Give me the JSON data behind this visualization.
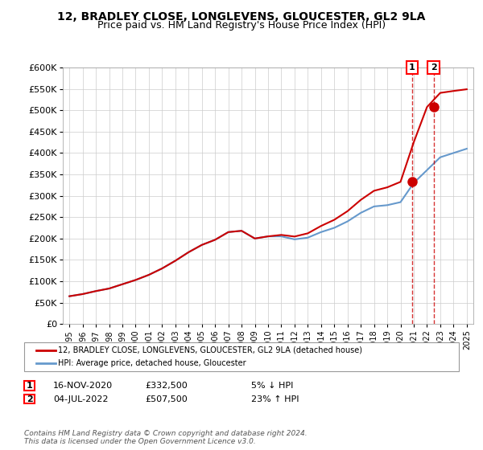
{
  "title": "12, BRADLEY CLOSE, LONGLEVENS, GLOUCESTER, GL2 9LA",
  "subtitle": "Price paid vs. HM Land Registry's House Price Index (HPI)",
  "ylabel_ticks": [
    "£0",
    "£50K",
    "£100K",
    "£150K",
    "£200K",
    "£250K",
    "£300K",
    "£350K",
    "£400K",
    "£450K",
    "£500K",
    "£550K",
    "£600K"
  ],
  "ytick_values": [
    0,
    50000,
    100000,
    150000,
    200000,
    250000,
    300000,
    350000,
    400000,
    450000,
    500000,
    550000,
    600000
  ],
  "years": [
    1995,
    1996,
    1997,
    1998,
    1999,
    2000,
    2001,
    2002,
    2003,
    2004,
    2005,
    2006,
    2007,
    2008,
    2009,
    2010,
    2011,
    2012,
    2013,
    2014,
    2015,
    2016,
    2017,
    2018,
    2019,
    2020,
    2021,
    2022,
    2023,
    2024,
    2025
  ],
  "hpi_values": [
    65000,
    70000,
    77000,
    83000,
    93000,
    103000,
    115000,
    130000,
    148000,
    168000,
    185000,
    197000,
    215000,
    218000,
    200000,
    205000,
    205000,
    198000,
    202000,
    215000,
    225000,
    240000,
    260000,
    275000,
    278000,
    285000,
    330000,
    360000,
    390000,
    400000,
    410000
  ],
  "price_paid_dates": [
    2020.88,
    2022.5
  ],
  "price_paid_values": [
    332500,
    507500
  ],
  "sale1_date": 2020.88,
  "sale1_value": 332500,
  "sale1_label": "1",
  "sale2_date": 2022.5,
  "sale2_value": 507500,
  "sale2_label": "2",
  "legend_line1": "12, BRADLEY CLOSE, LONGLEVENS, GLOUCESTER, GL2 9LA (detached house)",
  "legend_line2": "HPI: Average price, detached house, Gloucester",
  "annotation1_date": "16-NOV-2020",
  "annotation1_price": "£332,500",
  "annotation1_hpi": "5% ↓ HPI",
  "annotation2_date": "04-JUL-2022",
  "annotation2_price": "£507,500",
  "annotation2_hpi": "23% ↑ HPI",
  "footer": "Contains HM Land Registry data © Crown copyright and database right 2024.\nThis data is licensed under the Open Government Licence v3.0.",
  "line_color_red": "#cc0000",
  "line_color_blue": "#6699cc",
  "background_color": "#ffffff",
  "grid_color": "#cccccc",
  "xmin": 1994.5,
  "xmax": 2025.5,
  "ymin": 0,
  "ymax": 600000
}
